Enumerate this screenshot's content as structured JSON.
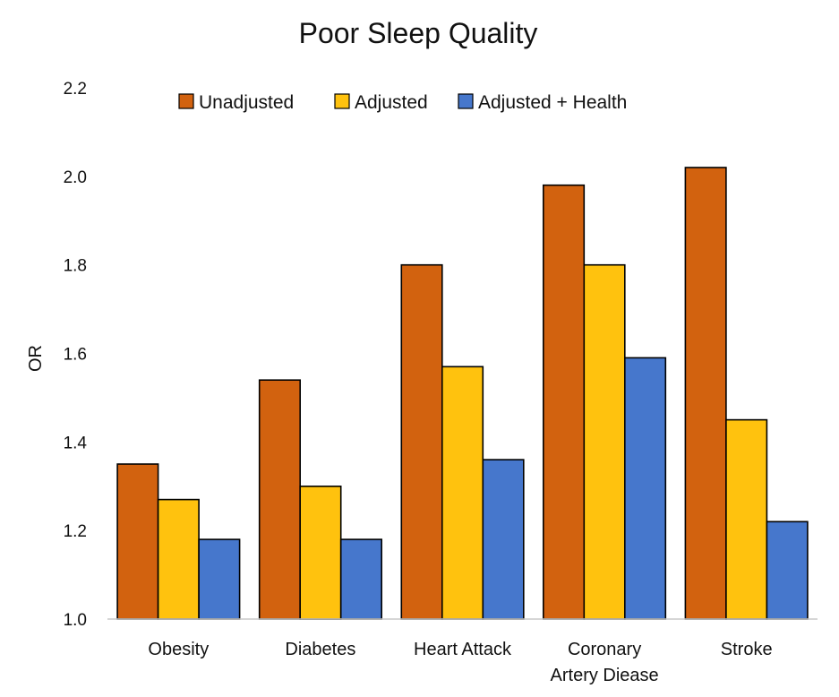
{
  "chart_data": {
    "type": "bar",
    "title": "Poor Sleep Quality",
    "ylabel": "OR",
    "ylim": [
      1.0,
      2.2
    ],
    "yticks": [
      "1.0",
      "1.2",
      "1.4",
      "1.6",
      "1.8",
      "2.0",
      "2.2"
    ],
    "ytick_values": [
      1.0,
      1.2,
      1.4,
      1.6,
      1.8,
      2.0,
      2.2
    ],
    "categories": [
      [
        "Obesity"
      ],
      [
        "Diabetes"
      ],
      [
        "Heart Attack"
      ],
      [
        "Coronary",
        "Artery Diease"
      ],
      [
        "Stroke"
      ]
    ],
    "legend_position": "top",
    "grid": false,
    "series": [
      {
        "name": "Unadjusted",
        "color": "#d2620f",
        "values": [
          1.35,
          1.54,
          1.8,
          1.98,
          2.02
        ]
      },
      {
        "name": "Adjusted",
        "color": "#ffc20e",
        "values": [
          1.27,
          1.3,
          1.57,
          1.8,
          1.45
        ]
      },
      {
        "name": "Adjusted + Health",
        "color": "#4677cc",
        "values": [
          1.18,
          1.18,
          1.36,
          1.59,
          1.22
        ]
      }
    ]
  }
}
